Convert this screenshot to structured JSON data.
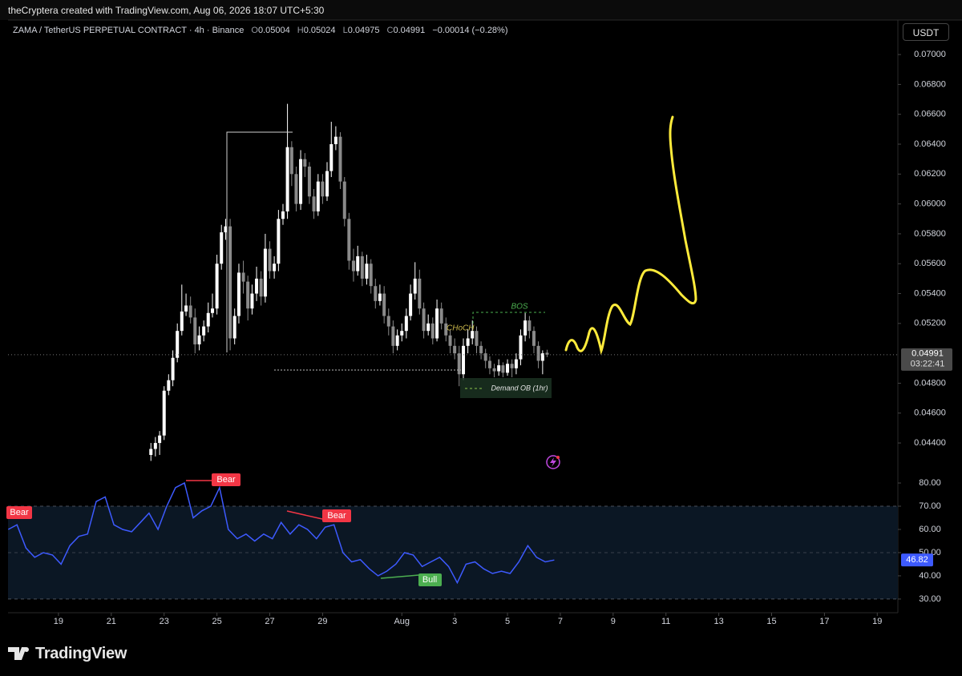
{
  "header": {
    "credit": "theCryptera created with TradingView.com, Aug 06, 2026 18:07 UTC+5:30"
  },
  "legend": {
    "symbol": "ZAMA / TetherUS PERPETUAL CONTRACT · 4h · Binance",
    "ohlc": [
      {
        "key": "O",
        "value": "0.05004"
      },
      {
        "key": "H",
        "value": "0.05024"
      },
      {
        "key": "L",
        "value": "0.04975"
      },
      {
        "key": "C",
        "value": "0.04991"
      }
    ],
    "change": "−0.00014 (−0.28%)"
  },
  "currency": "USDT",
  "chart_data": [
    {
      "type": "candlestick",
      "up_color": "#ffffff",
      "down_color": "#8a8a8a",
      "x": [
        22.5,
        22.67,
        22.83,
        23,
        23.17,
        23.33,
        23.5,
        23.67,
        23.83,
        24,
        24.17,
        24.33,
        24.5,
        24.67,
        24.83,
        25,
        25.17,
        25.33,
        25.5,
        25.67,
        25.83,
        26,
        26.17,
        26.33,
        26.5,
        26.67,
        26.83,
        27,
        27.17,
        27.33,
        27.5,
        27.67,
        27.83,
        28,
        28.17,
        28.33,
        28.5,
        28.67,
        28.83,
        29,
        29.17,
        29.33,
        29.5,
        29.67,
        29.83,
        30,
        30.17,
        30.33,
        30.5,
        30.67,
        30.83,
        31,
        31.17,
        31.33,
        31.5,
        31.67,
        31.83,
        32,
        32.17,
        32.33,
        32.5,
        32.67,
        32.83,
        33,
        33.17,
        33.33,
        33.5,
        33.67,
        33.83,
        34,
        34.17,
        34.33,
        34.5,
        34.67,
        34.83,
        35,
        35.17,
        35.33,
        35.5,
        35.67,
        35.83,
        36,
        36.17,
        36.33,
        36.5,
        36.67,
        36.83,
        37,
        37.17,
        37.33,
        37.5
      ],
      "open": [
        0.0432,
        0.0436,
        0.044,
        0.0445,
        0.0475,
        0.0482,
        0.0497,
        0.0515,
        0.0528,
        0.0532,
        0.0524,
        0.0506,
        0.0512,
        0.0518,
        0.0527,
        0.053,
        0.056,
        0.0581,
        0.0585,
        0.051,
        0.0525,
        0.0554,
        0.0548,
        0.053,
        0.054,
        0.055,
        0.0538,
        0.057,
        0.0555,
        0.056,
        0.059,
        0.0595,
        0.0638,
        0.062,
        0.06,
        0.063,
        0.0625,
        0.0605,
        0.0595,
        0.0615,
        0.0605,
        0.0622,
        0.064,
        0.0645,
        0.0615,
        0.059,
        0.0562,
        0.0555,
        0.0565,
        0.055,
        0.056,
        0.0545,
        0.0535,
        0.054,
        0.0525,
        0.0518,
        0.0505,
        0.0512,
        0.0515,
        0.0525,
        0.054,
        0.055,
        0.053,
        0.0515,
        0.052,
        0.051,
        0.053,
        0.052,
        0.0512,
        0.0505,
        0.05,
        0.0486,
        0.0505,
        0.051,
        0.0515,
        0.0505,
        0.05,
        0.0495,
        0.049,
        0.0488,
        0.0492,
        0.0487,
        0.0493,
        0.049,
        0.0496,
        0.0512,
        0.0522,
        0.0515,
        0.0505,
        0.0495,
        0.05004
      ],
      "high": [
        0.044,
        0.0444,
        0.0448,
        0.0478,
        0.0486,
        0.0502,
        0.052,
        0.0546,
        0.054,
        0.0538,
        0.053,
        0.0518,
        0.0522,
        0.0534,
        0.054,
        0.0566,
        0.0586,
        0.059,
        0.059,
        0.053,
        0.056,
        0.0562,
        0.0552,
        0.0546,
        0.0558,
        0.0555,
        0.058,
        0.0575,
        0.0565,
        0.0596,
        0.06,
        0.0667,
        0.0642,
        0.0625,
        0.0636,
        0.0634,
        0.0628,
        0.061,
        0.062,
        0.062,
        0.0628,
        0.0655,
        0.0652,
        0.0648,
        0.0618,
        0.0594,
        0.057,
        0.0572,
        0.0568,
        0.0566,
        0.0563,
        0.055,
        0.0546,
        0.0545,
        0.053,
        0.0522,
        0.0516,
        0.052,
        0.053,
        0.0546,
        0.0561,
        0.0556,
        0.0534,
        0.0526,
        0.0524,
        0.0536,
        0.0534,
        0.0524,
        0.0516,
        0.051,
        0.0505,
        0.051,
        0.0516,
        0.0522,
        0.0518,
        0.0508,
        0.0503,
        0.0498,
        0.0493,
        0.0496,
        0.0494,
        0.0496,
        0.0496,
        0.05,
        0.0516,
        0.0527,
        0.0525,
        0.0518,
        0.0508,
        0.0502,
        0.05024
      ],
      "low": [
        0.0428,
        0.0431,
        0.0432,
        0.0442,
        0.0472,
        0.0478,
        0.0494,
        0.0512,
        0.0525,
        0.052,
        0.05,
        0.0502,
        0.0508,
        0.0514,
        0.0524,
        0.0526,
        0.0556,
        0.0576,
        0.0502,
        0.0506,
        0.052,
        0.054,
        0.0522,
        0.0526,
        0.0535,
        0.0532,
        0.0534,
        0.055,
        0.055,
        0.0555,
        0.0586,
        0.059,
        0.0612,
        0.0595,
        0.0596,
        0.0618,
        0.06,
        0.059,
        0.0592,
        0.06,
        0.0602,
        0.0618,
        0.0636,
        0.061,
        0.0585,
        0.0556,
        0.0548,
        0.0552,
        0.0545,
        0.0546,
        0.054,
        0.053,
        0.0532,
        0.052,
        0.0512,
        0.05,
        0.0502,
        0.0508,
        0.051,
        0.0522,
        0.0536,
        0.0526,
        0.051,
        0.0512,
        0.0506,
        0.0508,
        0.0516,
        0.0508,
        0.05,
        0.0496,
        0.0478,
        0.0482,
        0.05,
        0.0506,
        0.05,
        0.0496,
        0.049,
        0.0486,
        0.0484,
        0.0485,
        0.0484,
        0.0485,
        0.0484,
        0.0486,
        0.0492,
        0.0508,
        0.051,
        0.05,
        0.049,
        0.0486,
        0.04975
      ],
      "close": [
        0.0436,
        0.044,
        0.0445,
        0.0475,
        0.0482,
        0.0497,
        0.0515,
        0.0528,
        0.0532,
        0.0524,
        0.0506,
        0.0512,
        0.0518,
        0.0527,
        0.053,
        0.056,
        0.0581,
        0.0585,
        0.051,
        0.0525,
        0.0554,
        0.0548,
        0.053,
        0.054,
        0.055,
        0.0538,
        0.057,
        0.0555,
        0.056,
        0.059,
        0.0595,
        0.0638,
        0.062,
        0.06,
        0.063,
        0.0625,
        0.0605,
        0.0595,
        0.0615,
        0.0605,
        0.0622,
        0.064,
        0.0645,
        0.0615,
        0.059,
        0.0562,
        0.0555,
        0.0565,
        0.055,
        0.056,
        0.0545,
        0.0535,
        0.054,
        0.0525,
        0.0518,
        0.0505,
        0.0512,
        0.0515,
        0.0525,
        0.054,
        0.055,
        0.053,
        0.0515,
        0.052,
        0.051,
        0.053,
        0.052,
        0.0512,
        0.0505,
        0.05,
        0.0486,
        0.0505,
        0.051,
        0.0515,
        0.0505,
        0.05,
        0.0495,
        0.049,
        0.0488,
        0.0492,
        0.0487,
        0.0493,
        0.049,
        0.0496,
        0.0512,
        0.0522,
        0.0515,
        0.0505,
        0.0495,
        0.05,
        0.04991
      ],
      "xlim": [
        17.09,
        50.78
      ],
      "ylim": [
        0.04202,
        0.07231
      ],
      "yticks": [
        {
          "value": 0.07,
          "label": "0.07000"
        },
        {
          "value": 0.068,
          "label": "0.06800"
        },
        {
          "value": 0.066,
          "label": "0.06600"
        },
        {
          "value": 0.064,
          "label": "0.06400"
        },
        {
          "value": 0.062,
          "label": "0.06200"
        },
        {
          "value": 0.06,
          "label": "0.06000"
        },
        {
          "value": 0.058,
          "label": "0.05800"
        },
        {
          "value": 0.056,
          "label": "0.05600"
        },
        {
          "value": 0.054,
          "label": "0.05400"
        },
        {
          "value": 0.052,
          "label": "0.05200"
        },
        {
          "value": 0.048,
          "label": "0.04800"
        },
        {
          "value": 0.046,
          "label": "0.04600"
        },
        {
          "value": 0.044,
          "label": "0.04400"
        }
      ],
      "last_value": 0.04991,
      "countdown": "03:22:41",
      "annotations": [
        "BOS",
        "CHoCH",
        "Demand OB (1hr)"
      ]
    },
    {
      "type": "line",
      "color": "#3d5afe",
      "x": [
        17.1,
        17.43,
        17.77,
        18.1,
        18.43,
        18.77,
        19.1,
        19.43,
        19.77,
        20.1,
        20.43,
        20.77,
        21.1,
        21.43,
        21.77,
        22.1,
        22.43,
        22.77,
        23.1,
        23.43,
        23.77,
        24.1,
        24.43,
        24.77,
        25.1,
        25.43,
        25.77,
        26.1,
        26.43,
        26.77,
        27.1,
        27.43,
        27.77,
        28.1,
        28.43,
        28.77,
        29.1,
        29.43,
        29.77,
        30.1,
        30.43,
        30.77,
        31.1,
        31.43,
        31.77,
        32.1,
        32.43,
        32.77,
        33.1,
        33.43,
        33.77,
        34.1,
        34.43,
        34.77,
        35.1,
        35.43,
        35.77,
        36.1,
        36.43,
        36.77,
        37.1,
        37.43,
        37.77
      ],
      "values": [
        60,
        62,
        52,
        48,
        50,
        49,
        45,
        53,
        57,
        58,
        72,
        74,
        62,
        60,
        59,
        63,
        67,
        60,
        70,
        78,
        80,
        65,
        68,
        70,
        78,
        60,
        56,
        58,
        55,
        58,
        56,
        63,
        58,
        62,
        60,
        56,
        61,
        62,
        50,
        46,
        47,
        43,
        40,
        42,
        45,
        50,
        49,
        44,
        46,
        48,
        44,
        37,
        45,
        46,
        43,
        41,
        42,
        41,
        46,
        53,
        48,
        46,
        46.82
      ],
      "xlim": [
        17.09,
        50.78
      ],
      "ylim": [
        24.1,
        84.5
      ],
      "yticks": [
        {
          "value": 80,
          "label": "80.00"
        },
        {
          "value": 70,
          "label": "70.00"
        },
        {
          "value": 60,
          "label": "60.00"
        },
        {
          "value": 50,
          "label": "50.00"
        },
        {
          "value": 40,
          "label": "40.00"
        },
        {
          "value": 30,
          "label": "30.00"
        }
      ],
      "band": [
        30,
        70
      ],
      "midline": 50,
      "xticks": [
        19,
        21,
        23,
        25,
        27,
        29,
        {
          "value": 32,
          "label": "Aug"
        },
        {
          "value": 34,
          "label": "3"
        },
        {
          "value": 36,
          "label": "5"
        },
        {
          "value": 38,
          "label": "7"
        },
        {
          "value": 40,
          "label": "9"
        },
        {
          "value": 42,
          "label": "11"
        },
        {
          "value": 44,
          "label": "13"
        },
        {
          "value": 46,
          "label": "15"
        },
        {
          "value": 48,
          "label": "17"
        },
        {
          "value": 50,
          "label": "19"
        }
      ],
      "annotations": [
        "Bear",
        "Bear",
        "Bear",
        "Bull"
      ]
    }
  ],
  "footer": {
    "brand": "TradingView"
  }
}
